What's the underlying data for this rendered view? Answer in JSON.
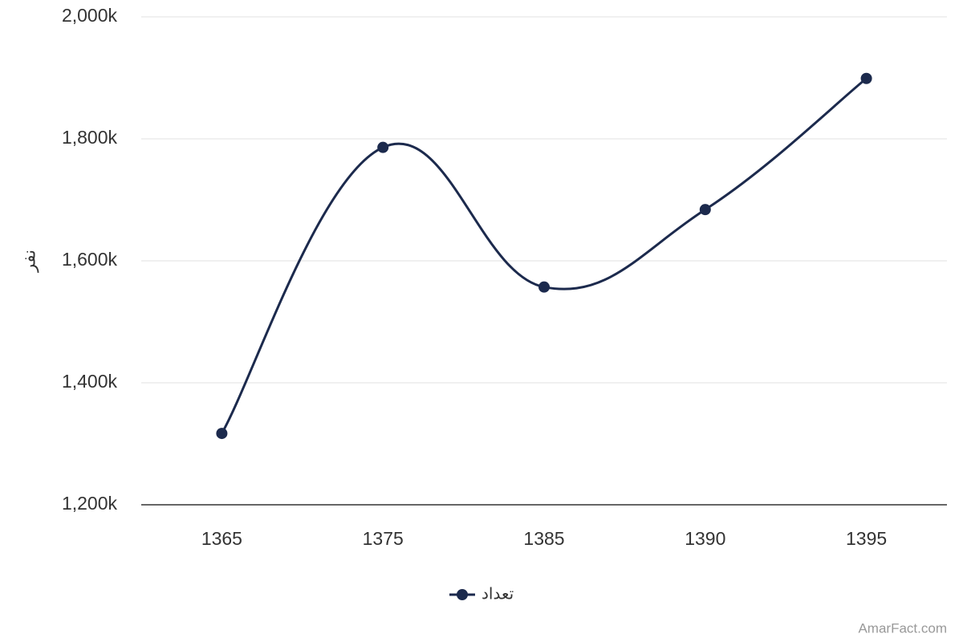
{
  "chart_data": {
    "type": "line",
    "y_label": "نفر",
    "categories": [
      "1365",
      "1375",
      "1385",
      "1390",
      "1395"
    ],
    "series": [
      {
        "name": "تعداد",
        "color": "#1c2a4d",
        "values": [
          1317000,
          1786000,
          1557000,
          1684000,
          1899000
        ]
      }
    ],
    "ylim": [
      1200000,
      2000000
    ],
    "yticks": [
      {
        "value": 1200000,
        "label": "1,200k"
      },
      {
        "value": 1400000,
        "label": "1,400k"
      },
      {
        "value": 1600000,
        "label": "1,600k"
      },
      {
        "value": 1800000,
        "label": "1,800k"
      },
      {
        "value": 2000000,
        "label": "2,000k"
      }
    ],
    "grid": true,
    "legend": "bottom",
    "credits": "AmarFact.com"
  }
}
